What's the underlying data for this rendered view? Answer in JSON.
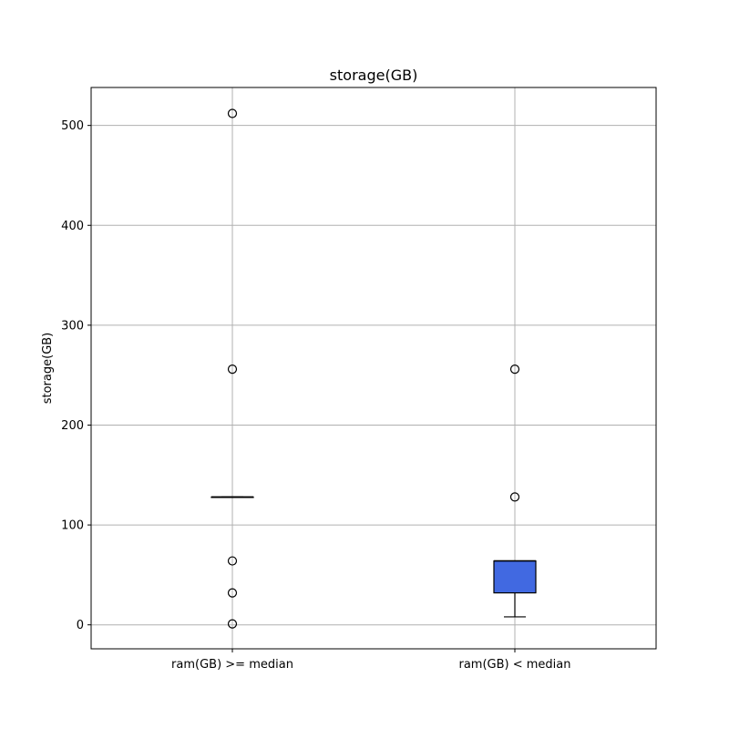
{
  "chart_data": {
    "type": "box",
    "title": "storage(GB)",
    "xlabel": "",
    "ylabel": "storage(GB)",
    "ylim": [
      -24,
      538
    ],
    "yticks": [
      0,
      100,
      200,
      300,
      400,
      500
    ],
    "grid": true,
    "box_color": "#4169e1",
    "categories": [
      "ram(GB) >= median",
      "ram(GB) < median"
    ],
    "boxes": [
      {
        "label": "ram(GB) >= median",
        "whisker_low": 128,
        "q1": 128,
        "median": 128,
        "q3": 128,
        "whisker_high": 128,
        "outliers": [
          512,
          256,
          64,
          32,
          1
        ]
      },
      {
        "label": "ram(GB) < median",
        "whisker_low": 8,
        "q1": 32,
        "median": 64,
        "q3": 64,
        "whisker_high": 64,
        "outliers": [
          256,
          128
        ]
      }
    ]
  }
}
